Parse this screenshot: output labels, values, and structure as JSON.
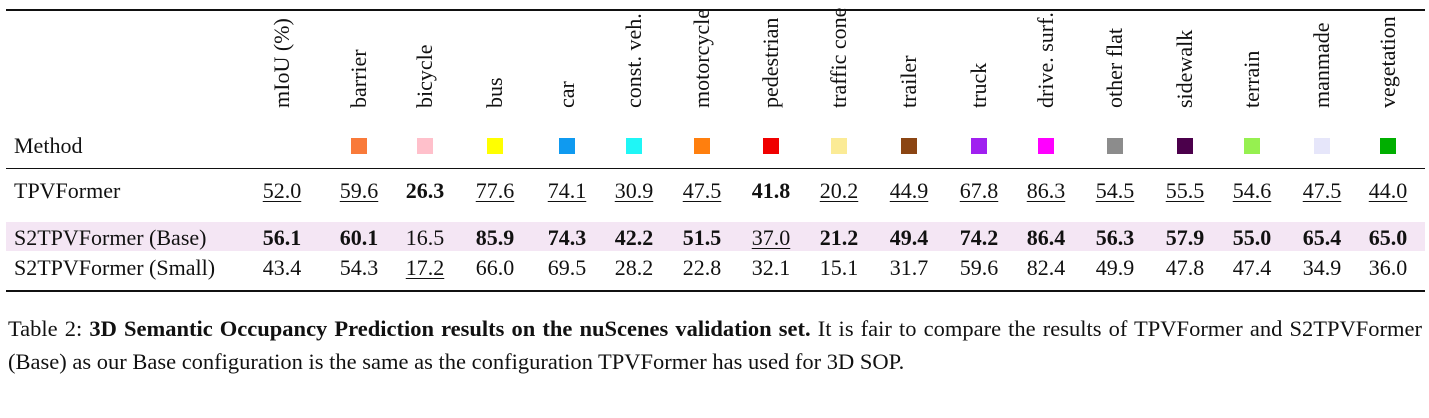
{
  "table": {
    "method_header": "Method",
    "columns": [
      {
        "label": "mIoU (%)",
        "color": null
      },
      {
        "label": "barrier",
        "color": "#f97a3a"
      },
      {
        "label": "bicycle",
        "color": "#ffc0cb"
      },
      {
        "label": "bus",
        "color": "#ffff00"
      },
      {
        "label": "car",
        "color": "#0f9af0"
      },
      {
        "label": "const. veh.",
        "color": "#1ff6f6"
      },
      {
        "label": "motorcycle",
        "color": "#ff7f0e"
      },
      {
        "label": "pedestrian",
        "color": "#f00000"
      },
      {
        "label": "traffic cone",
        "color": "#fbeb96"
      },
      {
        "label": "trailer",
        "color": "#8b4513"
      },
      {
        "label": "truck",
        "color": "#a020f0"
      },
      {
        "label": "drive. surf.",
        "color": "#ff00ff"
      },
      {
        "label": "other flat",
        "color": "#8c8c8c"
      },
      {
        "label": "sidewalk",
        "color": "#4b004b"
      },
      {
        "label": "terrain",
        "color": "#96f050"
      },
      {
        "label": "manmade",
        "color": "#e6e6fa"
      },
      {
        "label": "vegetation",
        "color": "#00af00"
      }
    ],
    "rows": [
      {
        "method": "TPVFormer",
        "values": [
          "52.0",
          "59.6",
          "26.3",
          "77.6",
          "74.1",
          "30.9",
          "47.5",
          "41.8",
          "20.2",
          "44.9",
          "67.8",
          "86.3",
          "54.5",
          "55.5",
          "54.6",
          "47.5",
          "44.0"
        ],
        "styles": [
          "u",
          "u",
          "b",
          "u",
          "u",
          "u",
          "u",
          "b",
          "u",
          "u",
          "u",
          "u",
          "u",
          "u",
          "u",
          "u",
          "u"
        ]
      },
      {
        "method": "S2TPVFormer (Base)",
        "values": [
          "56.1",
          "60.1",
          "16.5",
          "85.9",
          "74.3",
          "42.2",
          "51.5",
          "37.0",
          "21.2",
          "49.4",
          "74.2",
          "86.4",
          "56.3",
          "57.9",
          "55.0",
          "65.4",
          "65.0"
        ],
        "styles": [
          "b",
          "b",
          "",
          "b",
          "b",
          "b",
          "b",
          "u",
          "b",
          "b",
          "b",
          "b",
          "b",
          "b",
          "b",
          "b",
          "b"
        ]
      },
      {
        "method": "S2TPVFormer (Small)",
        "values": [
          "43.4",
          "54.3",
          "17.2",
          "66.0",
          "69.5",
          "28.2",
          "22.8",
          "32.1",
          "15.1",
          "31.7",
          "59.6",
          "82.4",
          "49.9",
          "47.8",
          "47.4",
          "34.9",
          "36.0"
        ],
        "styles": [
          "",
          "",
          "u",
          "",
          "",
          "",
          "",
          "",
          "",
          "",
          "",
          "",
          "",
          "",
          "",
          "",
          ""
        ]
      }
    ]
  },
  "caption": {
    "prefix": "Table 2: ",
    "bold": "3D Semantic Occupancy Prediction results on the nuScenes validation set.",
    "rest": " It is fair to compare the results of TPVFormer and S2TPVFormer (Base) as our Base configuration is the same as the configuration TPVFormer has used for 3D SOP."
  }
}
